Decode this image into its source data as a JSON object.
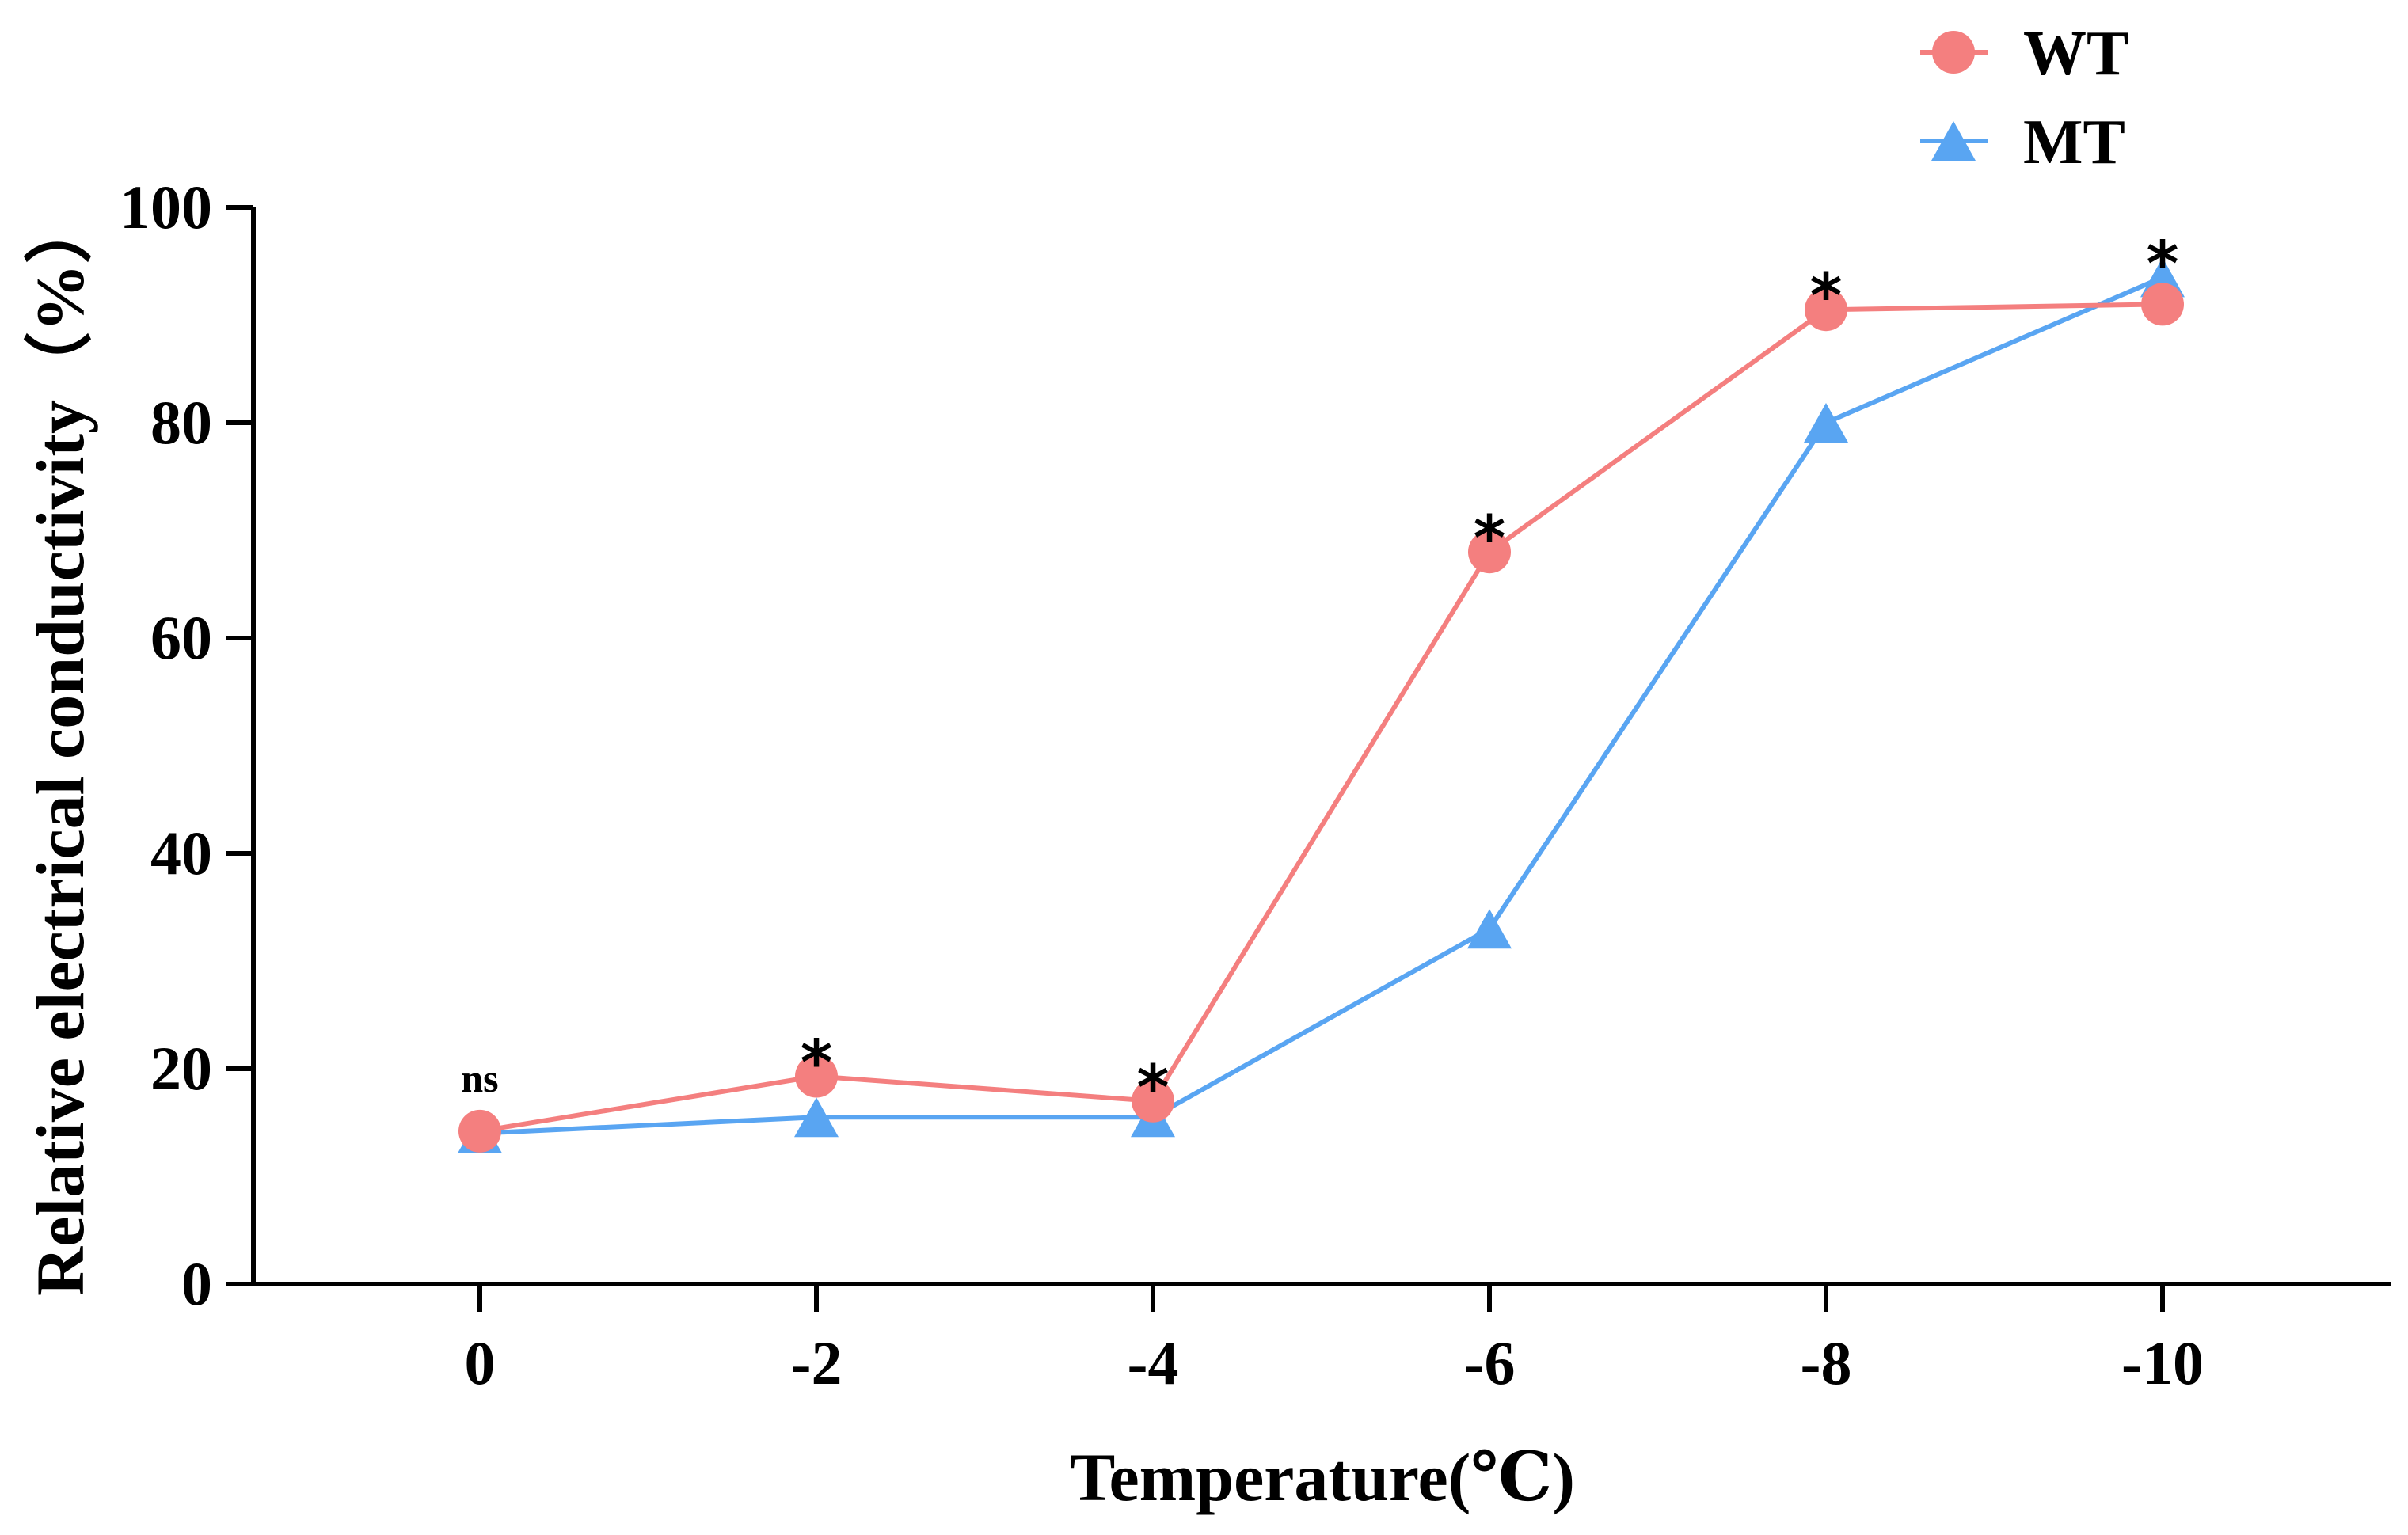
{
  "chart_data": {
    "type": "line",
    "title": "",
    "xlabel": "Temperature(℃)",
    "ylabel": "Relative electrical conductivity（%）",
    "categories": [
      "0",
      "-2",
      "-4",
      "-6",
      "-8",
      "-10"
    ],
    "ylim": [
      0,
      100
    ],
    "yticks": [
      0,
      20,
      40,
      60,
      80,
      100
    ],
    "grid": false,
    "legend_position": "top-right",
    "series": [
      {
        "name": "WT",
        "marker": "circle",
        "color": "#F47F7F",
        "values": [
          14.2,
          19.3,
          17.0,
          68.0,
          90.5,
          91.0
        ]
      },
      {
        "name": "MT",
        "marker": "triangle",
        "color": "#59A5F2",
        "values": [
          14.0,
          15.5,
          15.5,
          33.0,
          80.0,
          93.5
        ]
      }
    ],
    "annotations": [
      "ns",
      "*",
      "*",
      "*",
      "*",
      "*"
    ]
  }
}
